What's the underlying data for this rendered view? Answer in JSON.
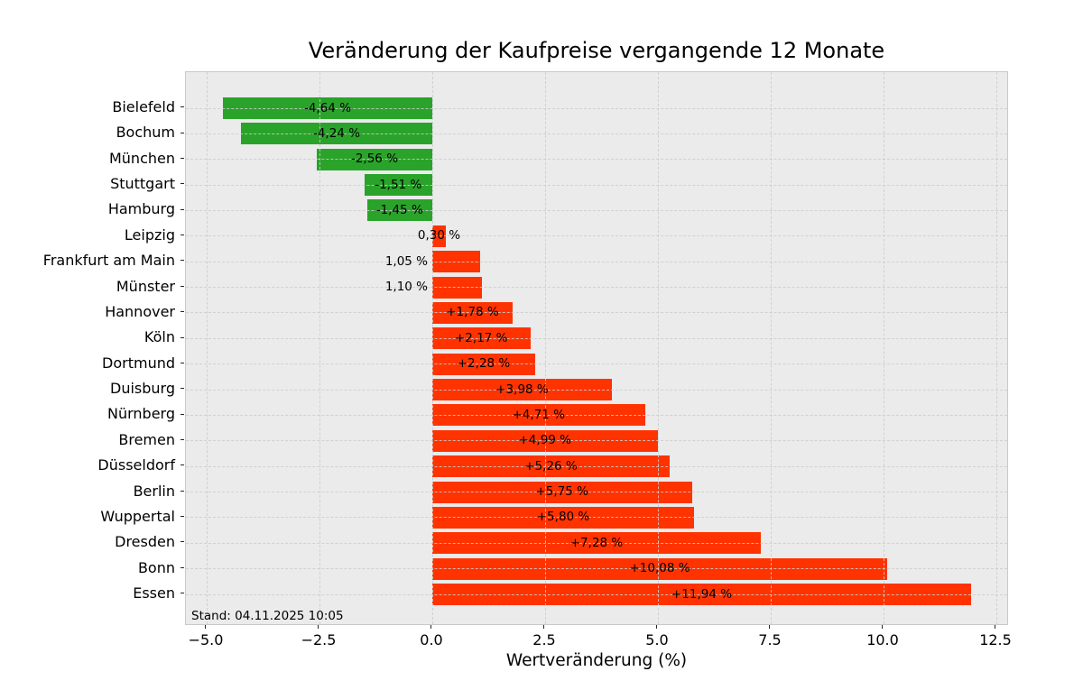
{
  "chart_data": {
    "type": "bar",
    "orientation": "horizontal",
    "title": "Veränderung der Kaufpreise vergangende 12 Monate",
    "xlabel": "Wertveränderung (%)",
    "annotation": "Stand: 04.11.2025 10:05",
    "grid": true,
    "legend": false,
    "xlim": [
      -5.46,
      12.78
    ],
    "xticks": [
      -5.0,
      -2.5,
      0.0,
      2.5,
      5.0,
      7.5,
      10.0,
      12.5
    ],
    "xtick_labels": [
      "−5.0",
      "−2.5",
      "0.0",
      "2.5",
      "5.0",
      "7.5",
      "10.0",
      "12.5"
    ],
    "categories": [
      "Bielefeld",
      "Bochum",
      "München",
      "Stuttgart",
      "Hamburg",
      "Leipzig",
      "Frankfurt am Main",
      "Münster",
      "Hannover",
      "Köln",
      "Dortmund",
      "Duisburg",
      "Nürnberg",
      "Bremen",
      "Düsseldorf",
      "Berlin",
      "Wuppertal",
      "Dresden",
      "Bonn",
      "Essen"
    ],
    "values": [
      -4.64,
      -4.24,
      -2.56,
      -1.51,
      -1.45,
      0.3,
      1.05,
      1.1,
      1.78,
      2.17,
      2.28,
      3.98,
      4.71,
      4.99,
      5.26,
      5.75,
      5.8,
      7.28,
      10.08,
      11.94
    ],
    "bar_labels": [
      "-4,64 %",
      "-4,24 %",
      "-2,56 %",
      "-1,51 %",
      "-1,45 %",
      "0,30 %",
      "1,05 %",
      "1,10 %",
      "+1,78 %",
      "+2,17 %",
      "+2,28 %",
      "+3,98 %",
      "+4,71 %",
      "+4,99 %",
      "+5,26 %",
      "+5,75 %",
      "+5,80 %",
      "+7,28 %",
      "+10,08 %",
      "+11,94 %"
    ],
    "bar_label_placement": [
      "center",
      "center",
      "center",
      "center",
      "center",
      "center",
      "outside-left",
      "outside-left",
      "center",
      "center",
      "center",
      "center",
      "center",
      "center",
      "center",
      "center",
      "center",
      "center",
      "center",
      "center"
    ],
    "colors": {
      "positive_bar": "#ff3300",
      "negative_bar": "#2aa32a",
      "plot_background": "#ebebeb",
      "grid_line": "#cdcdcd"
    }
  }
}
